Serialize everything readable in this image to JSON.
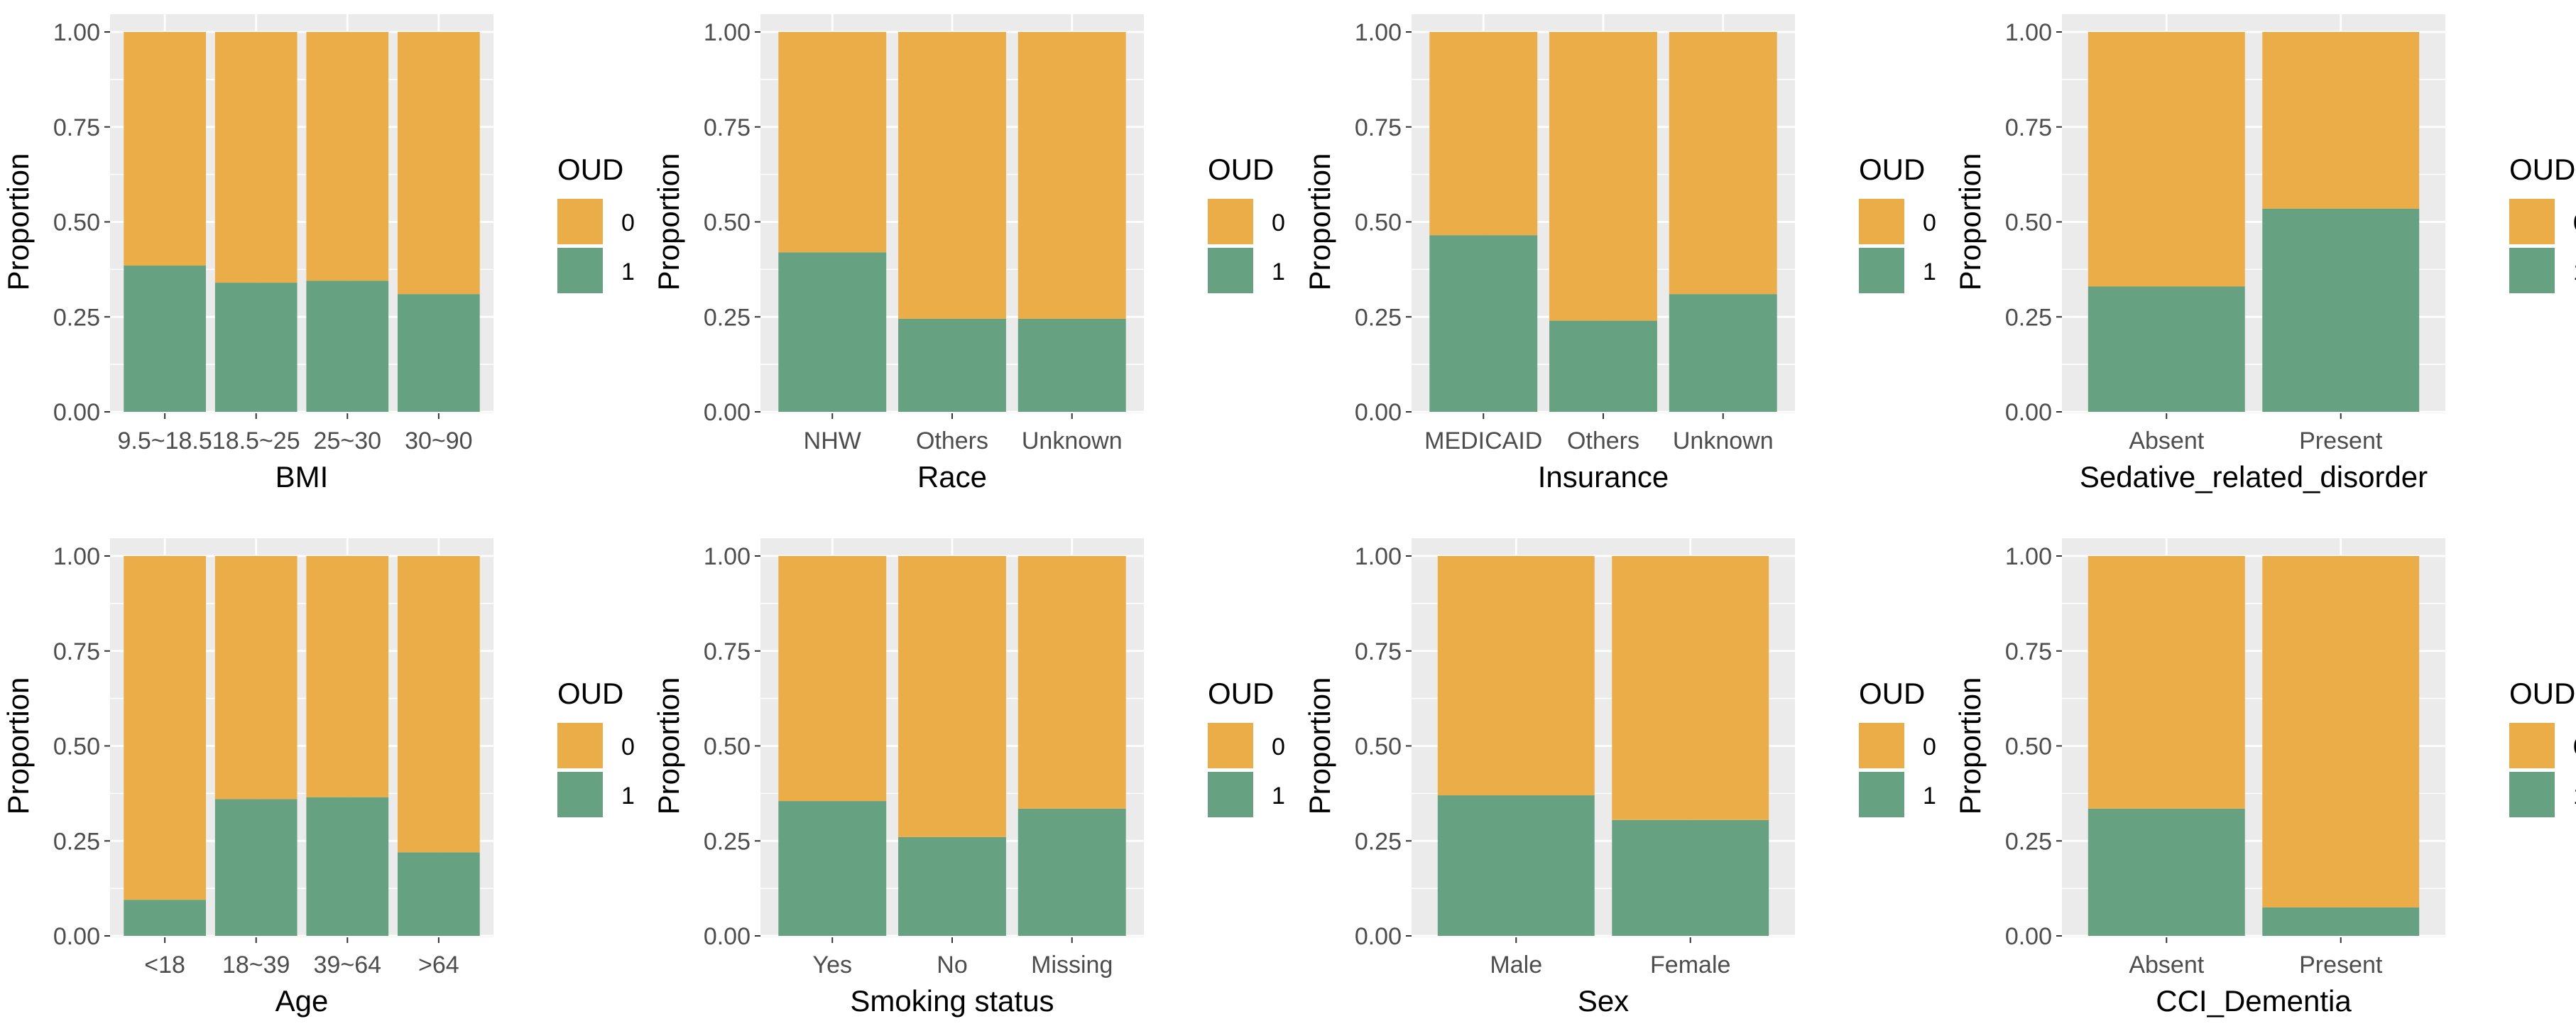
{
  "colors": {
    "oud_0": "#EBAD47",
    "oud_1": "#66A281",
    "panel_bg": "#EBEBEB",
    "grid": "#FFFFFF",
    "tick_text": "#4D4D4D",
    "title_text": "#000000"
  },
  "legend_title": "OUD",
  "legend_labels": [
    "0",
    "1"
  ],
  "y_axis_label": "Proportion",
  "y_ticks": [
    "0.00",
    "0.25",
    "0.50",
    "0.75",
    "1.00"
  ],
  "chart_data": [
    {
      "type": "bar",
      "stacked": true,
      "xlabel": "BMI",
      "ylabel": "Proportion",
      "ylim": [
        0,
        1
      ],
      "legend": "right",
      "categories": [
        "9.5~18.5",
        "18.5~25",
        "25~30",
        "30~90"
      ],
      "series": [
        {
          "name": "1",
          "values": [
            0.385,
            0.34,
            0.345,
            0.31
          ]
        },
        {
          "name": "0",
          "values": [
            0.615,
            0.66,
            0.655,
            0.69
          ]
        }
      ]
    },
    {
      "type": "bar",
      "stacked": true,
      "xlabel": "Race",
      "ylabel": "Proportion",
      "ylim": [
        0,
        1
      ],
      "legend": "right",
      "categories": [
        "NHW",
        "Others",
        "Unknown"
      ],
      "series": [
        {
          "name": "1",
          "values": [
            0.42,
            0.245,
            0.245
          ]
        },
        {
          "name": "0",
          "values": [
            0.58,
            0.755,
            0.755
          ]
        }
      ]
    },
    {
      "type": "bar",
      "stacked": true,
      "xlabel": "Insurance",
      "ylabel": "Proportion",
      "ylim": [
        0,
        1
      ],
      "legend": "right",
      "categories": [
        "MEDICAID",
        "Others",
        "Unknown"
      ],
      "series": [
        {
          "name": "1",
          "values": [
            0.465,
            0.24,
            0.31
          ]
        },
        {
          "name": "0",
          "values": [
            0.535,
            0.76,
            0.69
          ]
        }
      ]
    },
    {
      "type": "bar",
      "stacked": true,
      "xlabel": "Sedative_related_disorder",
      "ylabel": "Proportion",
      "ylim": [
        0,
        1
      ],
      "legend": "right",
      "categories": [
        "Absent",
        "Present"
      ],
      "series": [
        {
          "name": "1",
          "values": [
            0.33,
            0.535
          ]
        },
        {
          "name": "0",
          "values": [
            0.67,
            0.465
          ]
        }
      ]
    },
    {
      "type": "bar",
      "stacked": true,
      "xlabel": "Age",
      "ylabel": "Proportion",
      "ylim": [
        0,
        1
      ],
      "legend": "right",
      "categories": [
        "<18",
        "18~39",
        "39~64",
        ">64"
      ],
      "series": [
        {
          "name": "1",
          "values": [
            0.095,
            0.36,
            0.365,
            0.22
          ]
        },
        {
          "name": "0",
          "values": [
            0.905,
            0.64,
            0.635,
            0.78
          ]
        }
      ]
    },
    {
      "type": "bar",
      "stacked": true,
      "xlabel": "Smoking status",
      "ylabel": "Proportion",
      "ylim": [
        0,
        1
      ],
      "legend": "right",
      "categories": [
        "Yes",
        "No",
        "Missing"
      ],
      "series": [
        {
          "name": "1",
          "values": [
            0.355,
            0.26,
            0.335
          ]
        },
        {
          "name": "0",
          "values": [
            0.645,
            0.74,
            0.665
          ]
        }
      ]
    },
    {
      "type": "bar",
      "stacked": true,
      "xlabel": "Sex",
      "ylabel": "Proportion",
      "ylim": [
        0,
        1
      ],
      "legend": "right",
      "categories": [
        "Male",
        "Female"
      ],
      "series": [
        {
          "name": "1",
          "values": [
            0.37,
            0.305
          ]
        },
        {
          "name": "0",
          "values": [
            0.63,
            0.695
          ]
        }
      ]
    },
    {
      "type": "bar",
      "stacked": true,
      "xlabel": "CCI_Dementia",
      "ylabel": "Proportion",
      "ylim": [
        0,
        1
      ],
      "legend": "right",
      "categories": [
        "Absent",
        "Present"
      ],
      "series": [
        {
          "name": "1",
          "values": [
            0.335,
            0.075
          ]
        },
        {
          "name": "0",
          "values": [
            0.665,
            0.925
          ]
        }
      ]
    }
  ]
}
